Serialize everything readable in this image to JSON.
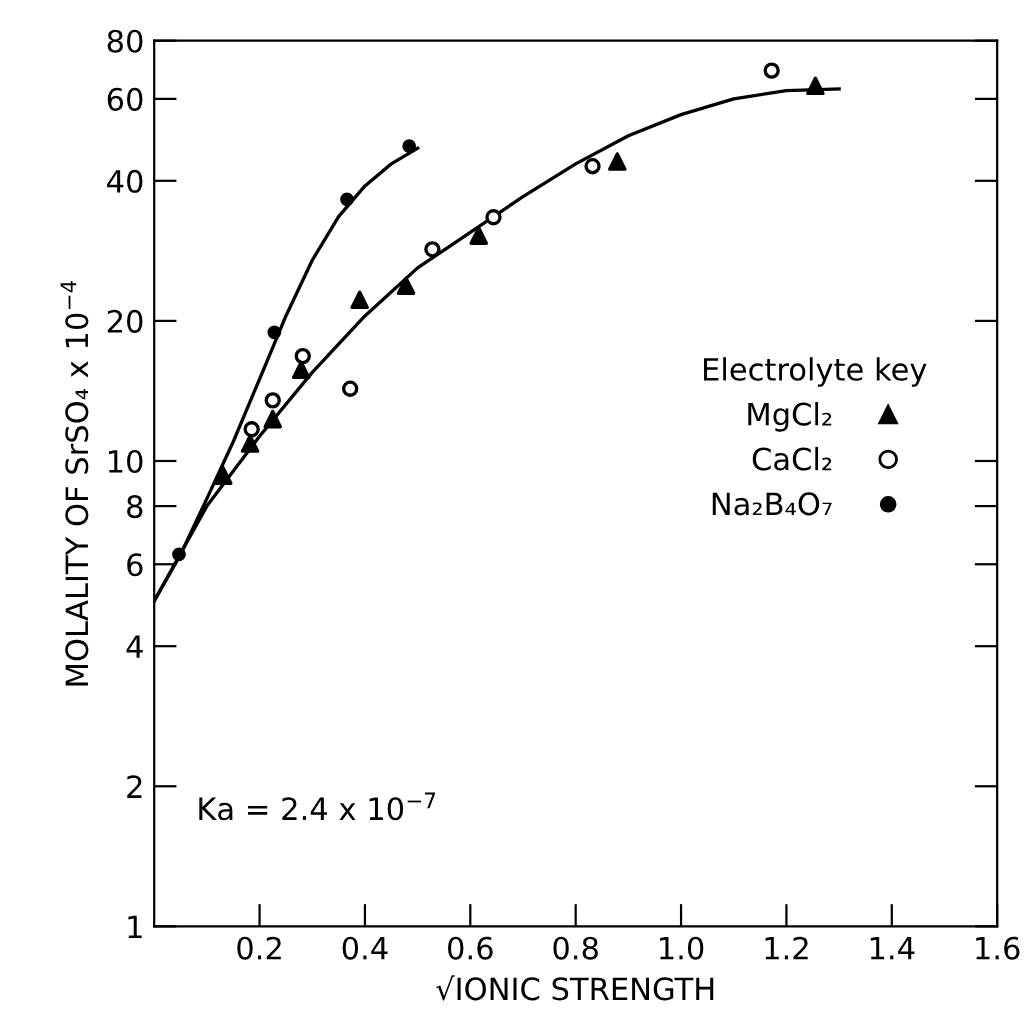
{
  "chart_data": {
    "type": "scatter",
    "xlabel": "√IONIC STRENGTH",
    "ylabel": "MOLALITY OF SrSO₄ x 10$^{−4}$",
    "legend_title": "Electrolyte key",
    "annotations": [
      "Ka = 2.4 x 10$^{−7}$"
    ],
    "log": "y",
    "grid": false,
    "legend": "right",
    "xlim": [
      0,
      1.6
    ],
    "xticks": [
      0.2,
      0.4,
      0.6,
      0.8,
      {
        "value": 1.0,
        "label": "1.0"
      },
      1.2,
      1.4,
      1.6
    ],
    "ylim": [
      1,
      80
    ],
    "yticks": [
      1,
      2,
      4,
      6,
      8,
      10,
      20,
      40,
      60,
      80
    ],
    "series": [
      {
        "name": "MgCl₂",
        "marker": "triangle",
        "color": "#000000",
        "x": [
          0.131,
          0.182,
          0.225,
          0.279,
          0.39,
          0.478,
          0.616,
          0.879,
          1.255
        ],
        "values": [
          9.3,
          10.9,
          12.3,
          15.7,
          22.2,
          23.8,
          30.5,
          44,
          64
        ]
      },
      {
        "name": "CaCl₂",
        "marker": "circle",
        "color": "#ffffff",
        "x": [
          0.185,
          0.225,
          0.282,
          0.372,
          0.528,
          0.644,
          0.832,
          1.172
        ],
        "values": [
          11.7,
          13.5,
          16.8,
          14.3,
          28.5,
          33.4,
          43,
          69
        ]
      },
      {
        "name": "Na₂B₄O₇",
        "marker": "circle",
        "color": "#000000",
        "x": [
          0.047,
          0.228,
          0.366,
          0.484
        ],
        "values": [
          6.3,
          18.9,
          36.5,
          47.5
        ]
      },
      {
        "type": "line",
        "color": "#000000",
        "x": [
          0,
          0.1,
          0.2,
          0.3,
          0.4,
          0.5,
          0.6,
          0.7,
          0.8,
          0.9,
          1.0,
          1.1,
          1.2,
          1.3
        ],
        "values": [
          5,
          8,
          11.3,
          15.5,
          20.5,
          26,
          31,
          37,
          43.5,
          50,
          55.5,
          60,
          62.5,
          63
        ]
      },
      {
        "type": "line",
        "color": "#000000",
        "x": [
          0,
          0.05,
          0.1,
          0.15,
          0.2,
          0.25,
          0.3,
          0.35,
          0.4,
          0.45,
          0.5
        ],
        "values": [
          5,
          6.3,
          8.3,
          11,
          15,
          20.5,
          27,
          33.5,
          39,
          43.5,
          47
        ]
      }
    ]
  }
}
